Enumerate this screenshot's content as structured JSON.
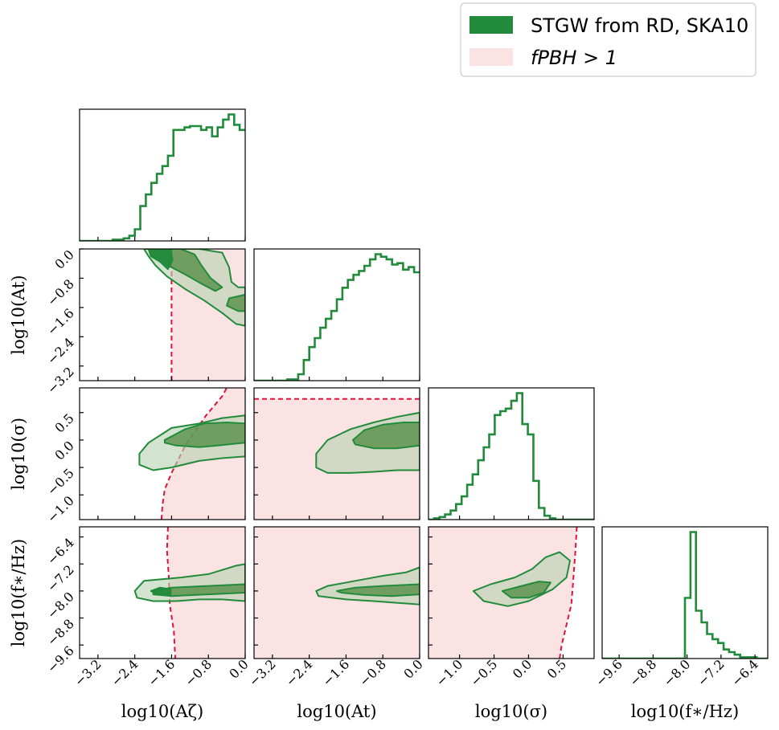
{
  "chart_data": {
    "type": "corner",
    "parameters": [
      {
        "label": "log10(A_ζ)",
        "ticks": [
          -3.2,
          -2.4,
          -1.6,
          -0.8,
          0.0
        ],
        "tick_labels": [
          "−3.2",
          "−2.4",
          "−1.6",
          "−0.8",
          "0.0"
        ],
        "range": [
          -3.6,
          0.0
        ]
      },
      {
        "label": "log10(A_t)",
        "ticks": [
          -3.2,
          -2.4,
          -1.6,
          -0.8,
          0.0
        ],
        "tick_labels": [
          "−3.2",
          "−2.4",
          "−1.6",
          "−0.8",
          "0.0"
        ],
        "range": [
          -3.6,
          0.0
        ]
      },
      {
        "label": "log10(σ)",
        "ticks": [
          -1.0,
          -0.5,
          0.0,
          0.5
        ],
        "tick_labels": [
          "−1.0",
          "−0.5",
          "0.0",
          "0.5"
        ],
        "range": [
          -1.45,
          0.95
        ]
      },
      {
        "label": "log10(f∗/Hz)",
        "ticks": [
          -9.6,
          -8.8,
          -8.0,
          -7.2,
          -6.4
        ],
        "tick_labels": [
          "−9.6",
          "−8.8",
          "−8.0",
          "−7.2",
          "−6.4"
        ],
        "range": [
          -10.0,
          -6.1
        ]
      }
    ],
    "axis_labels_display": [
      "log10(Aζ)",
      "log10(At)",
      "log10(σ)",
      "log10(f∗/Hz)"
    ],
    "legend": {
      "placement": "top-right",
      "entries": [
        {
          "label": "STGW from RD, SKA10",
          "color": "#228b3b"
        },
        {
          "label": "f_PBH > 1",
          "color": "#fbe3e4"
        }
      ],
      "display_text": [
        "STGW from RD, SKA10",
        "fPBH > 1"
      ]
    },
    "colors": {
      "posterior_line": "#228b3b",
      "inner_contour": "#4f8a3d",
      "outer_contour": "#b7d3b2",
      "region_fill": "#fbe3e4",
      "region_boundary": "#dc143c"
    },
    "histograms": [
      {
        "param": 0,
        "edges_start": -3.6,
        "bin_width": 0.12,
        "values": [
          0.0,
          0.0,
          0.0,
          0.0,
          0.0,
          0.0,
          0.01,
          0.01,
          0.02,
          0.04,
          0.09,
          0.27,
          0.36,
          0.45,
          0.52,
          0.58,
          0.66,
          0.86,
          0.86,
          0.88,
          0.89,
          0.89,
          0.86,
          0.88,
          0.81,
          0.88,
          0.94,
          0.98,
          0.9,
          0.86
        ]
      },
      {
        "param": 1,
        "edges_start": -3.6,
        "bin_width": 0.12,
        "values": [
          0.0,
          0.0,
          0.0,
          0.0,
          0.0,
          0.0,
          0.01,
          0.01,
          0.05,
          0.16,
          0.26,
          0.33,
          0.41,
          0.48,
          0.54,
          0.63,
          0.72,
          0.78,
          0.82,
          0.85,
          0.89,
          0.94,
          0.98,
          0.96,
          0.94,
          0.9,
          0.91,
          0.86,
          0.88,
          0.84
        ]
      },
      {
        "param": 2,
        "edges_start": -1.45,
        "bin_width": 0.08,
        "values": [
          0.0,
          0.01,
          0.02,
          0.04,
          0.07,
          0.12,
          0.18,
          0.27,
          0.35,
          0.46,
          0.56,
          0.66,
          0.81,
          0.84,
          0.86,
          0.92,
          0.98,
          0.74,
          0.66,
          0.3,
          0.09,
          0.03,
          0.01,
          0.0,
          0.0,
          0.0,
          0.0,
          0.0,
          0.0,
          0.0
        ]
      },
      {
        "param": 3,
        "edges_start": -10.0,
        "bin_width": 0.13,
        "values": [
          0.0,
          0.0,
          0.0,
          0.0,
          0.0,
          0.0,
          0.0,
          0.0,
          0.0,
          0.0,
          0.0,
          0.0,
          0.0,
          0.0,
          0.0,
          0.47,
          0.98,
          0.37,
          0.28,
          0.19,
          0.15,
          0.12,
          0.07,
          0.05,
          0.03,
          0.01,
          0.01,
          0.01,
          0.0,
          0.0
        ]
      }
    ],
    "contours_2d": [
      {
        "x": 0,
        "y": 1,
        "levels": [
          {
            "fill": "outer",
            "points": [
              [
                -2.2,
                0.0
              ],
              [
                -1.0,
                0.0
              ],
              [
                -0.5,
                -0.1
              ],
              [
                -0.35,
                -0.5
              ],
              [
                -0.3,
                -0.9
              ],
              [
                -0.15,
                -1.05
              ],
              [
                0.0,
                -1.05
              ],
              [
                0.0,
                -2.1
              ],
              [
                -0.2,
                -2.05
              ],
              [
                -0.5,
                -1.75
              ],
              [
                -0.9,
                -1.4
              ],
              [
                -1.3,
                -1.1
              ],
              [
                -1.7,
                -0.75
              ],
              [
                -1.95,
                -0.45
              ],
              [
                -2.1,
                -0.2
              ]
            ]
          },
          {
            "fill": "inner",
            "points": [
              [
                -2.1,
                0.0
              ],
              [
                -1.4,
                0.0
              ],
              [
                -1.1,
                -0.15
              ],
              [
                -0.95,
                -0.45
              ],
              [
                -0.75,
                -0.8
              ],
              [
                -0.5,
                -1.05
              ],
              [
                -0.65,
                -1.15
              ],
              [
                -0.95,
                -0.95
              ],
              [
                -1.3,
                -0.7
              ],
              [
                -1.6,
                -0.5
              ],
              [
                -1.85,
                -0.35
              ],
              [
                -2.05,
                -0.2
              ]
            ]
          },
          {
            "fill": "inner",
            "points": [
              [
                0.0,
                -1.25
              ],
              [
                -0.35,
                -1.35
              ],
              [
                -0.4,
                -1.55
              ],
              [
                -0.15,
                -1.7
              ],
              [
                0.0,
                -1.7
              ]
            ]
          },
          {
            "fill": "peak",
            "points": [
              [
                -2.08,
                0.0
              ],
              [
                -1.62,
                0.0
              ],
              [
                -1.58,
                -0.3
              ],
              [
                -1.68,
                -0.55
              ],
              [
                -1.85,
                -0.35
              ],
              [
                -2.05,
                -0.15
              ]
            ]
          }
        ]
      },
      {
        "x": 0,
        "y": 2,
        "levels": [
          {
            "fill": "outer",
            "points": [
              [
                -2.3,
                -0.25
              ],
              [
                -2.1,
                -0.05
              ],
              [
                -1.6,
                0.22
              ],
              [
                -1.0,
                0.3
              ],
              [
                -0.5,
                0.4
              ],
              [
                0.0,
                0.45
              ],
              [
                0.0,
                -0.3
              ],
              [
                -0.5,
                -0.33
              ],
              [
                -1.0,
                -0.38
              ],
              [
                -1.6,
                -0.5
              ],
              [
                -2.0,
                -0.55
              ],
              [
                -2.3,
                -0.45
              ]
            ]
          },
          {
            "fill": "inner",
            "points": [
              [
                -1.75,
                0.0
              ],
              [
                -1.3,
                0.2
              ],
              [
                -0.9,
                0.3
              ],
              [
                -0.4,
                0.32
              ],
              [
                0.0,
                0.3
              ],
              [
                0.0,
                -0.05
              ],
              [
                -0.6,
                -0.1
              ],
              [
                -1.0,
                -0.13
              ],
              [
                -1.5,
                -0.1
              ],
              [
                -1.75,
                -0.05
              ]
            ]
          }
        ]
      },
      {
        "x": 0,
        "y": 3,
        "levels": [
          {
            "fill": "outer",
            "points": [
              [
                -2.4,
                -8.0
              ],
              [
                -2.2,
                -7.7
              ],
              [
                -1.4,
                -7.6
              ],
              [
                -0.8,
                -7.5
              ],
              [
                -0.2,
                -7.25
              ],
              [
                0.0,
                -7.2
              ],
              [
                0.0,
                -8.3
              ],
              [
                -0.5,
                -8.25
              ],
              [
                -1.0,
                -8.25
              ],
              [
                -1.5,
                -8.3
              ],
              [
                -2.0,
                -8.3
              ],
              [
                -2.35,
                -8.2
              ]
            ]
          },
          {
            "fill": "inner",
            "points": [
              [
                -2.0,
                -8.0
              ],
              [
                -1.6,
                -7.9
              ],
              [
                -0.8,
                -7.85
              ],
              [
                0.0,
                -7.8
              ],
              [
                0.0,
                -8.05
              ],
              [
                -0.8,
                -8.1
              ],
              [
                -1.6,
                -8.15
              ],
              [
                -2.0,
                -8.1
              ]
            ]
          },
          {
            "fill": "peak",
            "points": [
              [
                -2.05,
                -8.0
              ],
              [
                -1.85,
                -7.9
              ],
              [
                -1.62,
                -7.95
              ],
              [
                -1.62,
                -8.1
              ],
              [
                -1.9,
                -8.1
              ]
            ]
          }
        ]
      },
      {
        "x": 1,
        "y": 2,
        "levels": [
          {
            "fill": "outer",
            "points": [
              [
                -2.25,
                -0.25
              ],
              [
                -2.0,
                0.0
              ],
              [
                -1.5,
                0.2
              ],
              [
                -1.0,
                0.32
              ],
              [
                -0.5,
                0.42
              ],
              [
                0.0,
                0.5
              ],
              [
                0.0,
                -0.55
              ],
              [
                -0.5,
                -0.55
              ],
              [
                -1.0,
                -0.58
              ],
              [
                -1.5,
                -0.6
              ],
              [
                -2.0,
                -0.6
              ],
              [
                -2.25,
                -0.5
              ]
            ]
          },
          {
            "fill": "inner",
            "points": [
              [
                -1.45,
                0.0
              ],
              [
                -1.2,
                0.18
              ],
              [
                -0.8,
                0.28
              ],
              [
                -0.35,
                0.32
              ],
              [
                0.0,
                0.32
              ],
              [
                0.0,
                -0.1
              ],
              [
                -0.5,
                -0.15
              ],
              [
                -1.0,
                -0.15
              ],
              [
                -1.4,
                -0.08
              ]
            ]
          }
        ]
      },
      {
        "x": 1,
        "y": 3,
        "levels": [
          {
            "fill": "outer",
            "points": [
              [
                -2.25,
                -8.0
              ],
              [
                -2.0,
                -7.85
              ],
              [
                -1.4,
                -7.7
              ],
              [
                -0.8,
                -7.55
              ],
              [
                -0.3,
                -7.45
              ],
              [
                0.0,
                -7.3
              ],
              [
                0.0,
                -8.4
              ],
              [
                -0.5,
                -8.35
              ],
              [
                -1.0,
                -8.3
              ],
              [
                -1.6,
                -8.25
              ],
              [
                -2.2,
                -8.15
              ]
            ]
          },
          {
            "fill": "inner",
            "points": [
              [
                -1.8,
                -8.0
              ],
              [
                -1.4,
                -7.9
              ],
              [
                -0.8,
                -7.85
              ],
              [
                0.0,
                -7.8
              ],
              [
                0.0,
                -8.1
              ],
              [
                -0.6,
                -8.15
              ],
              [
                -1.2,
                -8.12
              ],
              [
                -1.7,
                -8.05
              ]
            ]
          }
        ]
      },
      {
        "x": 2,
        "y": 3,
        "levels": [
          {
            "fill": "outer",
            "points": [
              [
                -0.8,
                -8.0
              ],
              [
                -0.55,
                -7.8
              ],
              [
                -0.2,
                -7.6
              ],
              [
                0.05,
                -7.35
              ],
              [
                0.25,
                -7.0
              ],
              [
                0.45,
                -6.85
              ],
              [
                0.6,
                -7.1
              ],
              [
                0.55,
                -7.6
              ],
              [
                0.35,
                -7.95
              ],
              [
                0.0,
                -8.3
              ],
              [
                -0.3,
                -8.45
              ],
              [
                -0.65,
                -8.3
              ]
            ]
          },
          {
            "fill": "inner",
            "points": [
              [
                -0.38,
                -8.0
              ],
              [
                -0.1,
                -7.85
              ],
              [
                0.15,
                -7.72
              ],
              [
                0.32,
                -7.75
              ],
              [
                0.22,
                -8.05
              ],
              [
                0.0,
                -8.2
              ],
              [
                -0.25,
                -8.2
              ]
            ]
          }
        ]
      }
    ],
    "excluded_region": {
      "label": "f_PBH > 1",
      "boundaries": [
        {
          "x": 0,
          "y": 1,
          "side": "right",
          "points": [
            [
              -1.6,
              -3.6
            ],
            [
              -1.6,
              0.0
            ]
          ]
        },
        {
          "x": 0,
          "y": 2,
          "side": "right",
          "points": [
            [
              -1.82,
              -1.45
            ],
            [
              -1.8,
              -1.2
            ],
            [
              -1.75,
              -0.9
            ],
            [
              -1.6,
              -0.6
            ],
            [
              -1.45,
              -0.35
            ],
            [
              -1.3,
              -0.1
            ],
            [
              -1.1,
              0.15
            ],
            [
              -0.85,
              0.45
            ],
            [
              -0.5,
              0.8
            ],
            [
              -0.4,
              0.95
            ]
          ]
        },
        {
          "x": 0,
          "y": 3,
          "side": "right",
          "points": [
            [
              -1.68,
              -6.1
            ],
            [
              -1.7,
              -6.8
            ],
            [
              -1.66,
              -7.6
            ],
            [
              -1.64,
              -8.4
            ],
            [
              -1.55,
              -9.2
            ],
            [
              -1.52,
              -10.0
            ]
          ]
        },
        {
          "x": 1,
          "y": 2,
          "side": "below",
          "points": [
            [
              -3.6,
              0.75
            ],
            [
              0.0,
              0.75
            ]
          ]
        },
        {
          "x": 2,
          "y": 3,
          "side": "left",
          "points": [
            [
              0.7,
              -6.1
            ],
            [
              0.68,
              -6.8
            ],
            [
              0.65,
              -7.6
            ],
            [
              0.62,
              -8.4
            ],
            [
              0.55,
              -9.0
            ],
            [
              0.48,
              -9.6
            ],
            [
              0.45,
              -10.0
            ]
          ]
        }
      ],
      "full_panels": [
        [
          1,
          3
        ]
      ]
    }
  }
}
